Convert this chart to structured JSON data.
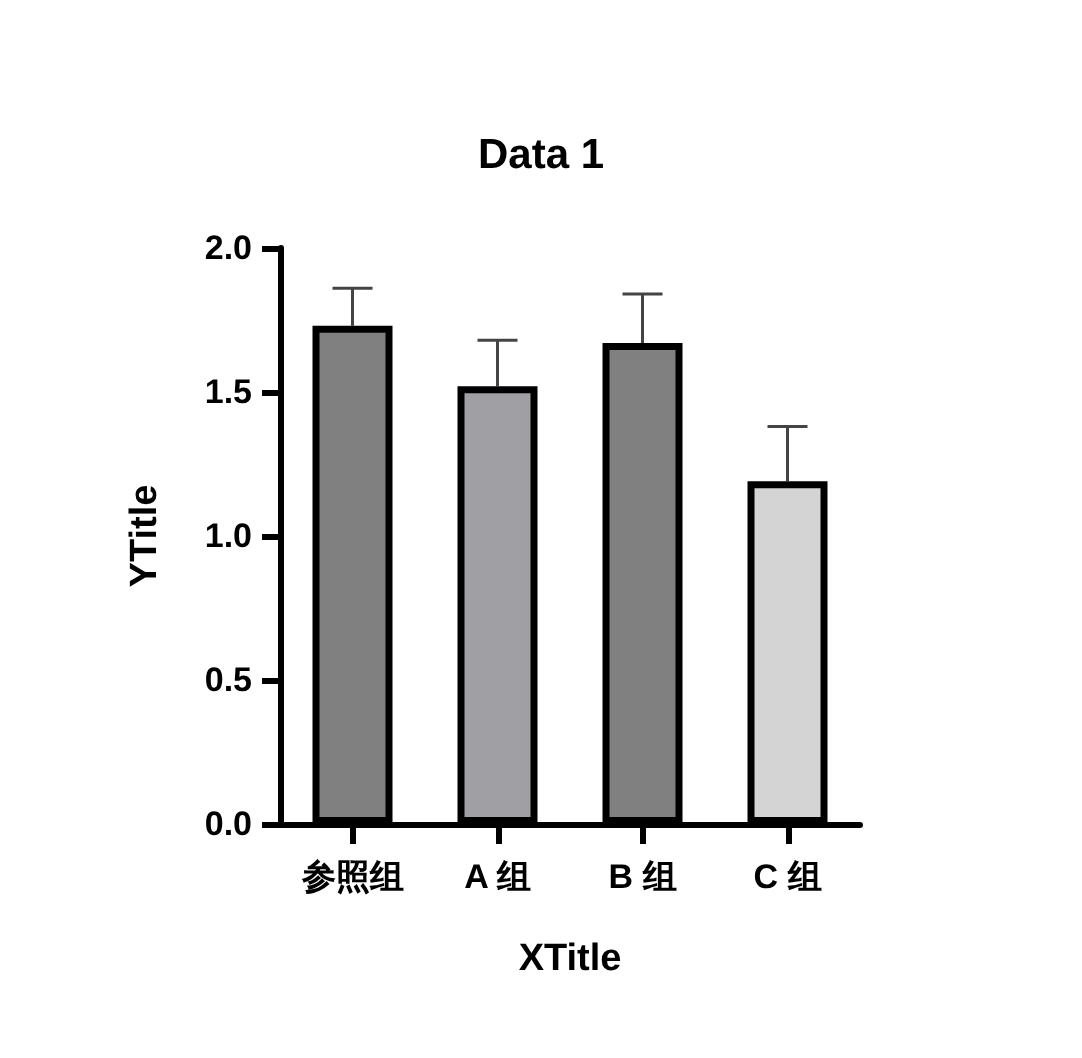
{
  "chart_data": {
    "type": "bar",
    "title": "Data 1",
    "xlabel": "XTitle",
    "ylabel": "YTitle",
    "categories": [
      "参照组",
      "A 组",
      "B 组",
      "C 组"
    ],
    "values": [
      1.73,
      1.52,
      1.67,
      1.19
    ],
    "colors": [
      "#808080",
      "#a0a0a4",
      "#808080",
      "#d4d4d4"
    ],
    "errors": [
      [
        1.73,
        1.86
      ],
      [
        1.52,
        1.68
      ],
      [
        1.67,
        1.84
      ],
      [
        1.19,
        1.38
      ]
    ],
    "ylim": [
      0,
      2
    ],
    "yticks": [
      {
        "value": 0,
        "label": "0.0"
      },
      {
        "value": 0.5,
        "label": "0.5"
      },
      {
        "value": 1,
        "label": "1.0"
      },
      {
        "value": 1.5,
        "label": "1.5"
      },
      {
        "value": 2,
        "label": "2.0"
      }
    ],
    "grid": false
  }
}
